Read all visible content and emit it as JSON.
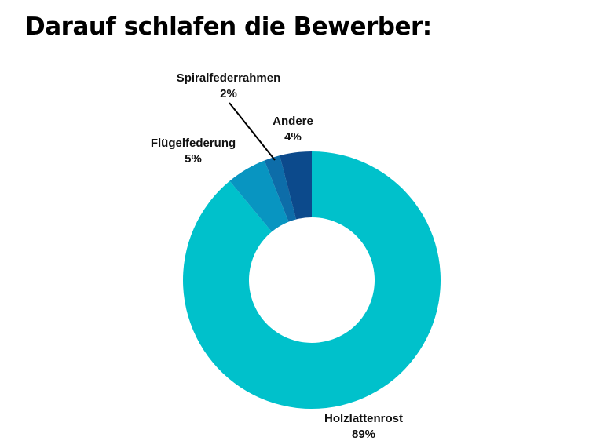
{
  "page": {
    "background_color": "#FFFFFF",
    "title": "Darauf schlafen die Bewerber:"
  },
  "chart_data": {
    "type": "pie",
    "variant": "donut",
    "title": "Darauf schlafen die Bewerber:",
    "start_angle_deg_from_top": 0,
    "direction": "clockwise",
    "donut_hole_ratio": 0.49,
    "legend_position": "none",
    "labels_outside": true,
    "categories": [
      "Holzlattenrost",
      "Flügelfederung",
      "Spiralfederrahmen",
      "Andere"
    ],
    "values": [
      89,
      5,
      2,
      4
    ],
    "slices": [
      {
        "label": "Holzlattenrost",
        "value": 89,
        "pct_label": "89%",
        "color": "#00C1CB"
      },
      {
        "label": "Flügelfederung",
        "value": 5,
        "pct_label": "5%",
        "color": "#0895C1"
      },
      {
        "label": "Spiralfederrahmen",
        "value": 2,
        "pct_label": "2%",
        "color": "#0D6DA9"
      },
      {
        "label": "Andere",
        "value": 4,
        "pct_label": "4%",
        "color": "#0C4A8C"
      }
    ],
    "leader_line": {
      "from_label": "Spiralfederrahmen",
      "color": "#000000"
    }
  }
}
